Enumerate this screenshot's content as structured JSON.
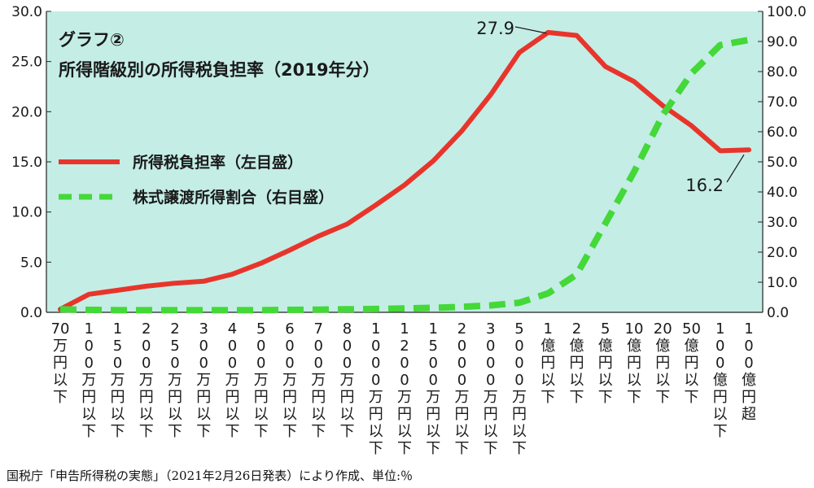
{
  "chart_data": {
    "type": "line",
    "title": "グラフ②",
    "subtitle": "所得階級別の所得税負担率（2019年分）",
    "categories": [
      "70万円以下",
      "100万円以下",
      "150万円以下",
      "200万円以下",
      "250万円以下",
      "300万円以下",
      "400万円以下",
      "500万円以下",
      "600万円以下",
      "700万円以下",
      "800万円以下",
      "1000万円以下",
      "1200万円以下",
      "1500万円以下",
      "2000万円以下",
      "3000万円以下",
      "5000万円以下",
      "1億円以下",
      "2億円以下",
      "5億円以下",
      "10億円以下",
      "20億円以下",
      "50億円以下",
      "100億円以下",
      "100億円超"
    ],
    "x_tick_labels": [
      [
        "70",
        "万",
        "円",
        "以",
        "下"
      ],
      [
        "1",
        "0",
        "0",
        "万",
        "円",
        "以",
        "下"
      ],
      [
        "1",
        "5",
        "0",
        "万",
        "円",
        "以",
        "下"
      ],
      [
        "2",
        "0",
        "0",
        "万",
        "円",
        "以",
        "下"
      ],
      [
        "2",
        "5",
        "0",
        "万",
        "円",
        "以",
        "下"
      ],
      [
        "3",
        "0",
        "0",
        "万",
        "円",
        "以",
        "下"
      ],
      [
        "4",
        "0",
        "0",
        "万",
        "円",
        "以",
        "下"
      ],
      [
        "5",
        "0",
        "0",
        "万",
        "円",
        "以",
        "下"
      ],
      [
        "6",
        "0",
        "0",
        "万",
        "円",
        "以",
        "下"
      ],
      [
        "7",
        "0",
        "0",
        "万",
        "円",
        "以",
        "下"
      ],
      [
        "8",
        "0",
        "0",
        "万",
        "円",
        "以",
        "下"
      ],
      [
        "1",
        "0",
        "0",
        "0",
        "万",
        "円",
        "以",
        "下"
      ],
      [
        "1",
        "2",
        "0",
        "0",
        "万",
        "円",
        "以",
        "下"
      ],
      [
        "1",
        "5",
        "0",
        "0",
        "万",
        "円",
        "以",
        "下"
      ],
      [
        "2",
        "0",
        "0",
        "0",
        "万",
        "円",
        "以",
        "下"
      ],
      [
        "3",
        "0",
        "0",
        "0",
        "万",
        "円",
        "以",
        "下"
      ],
      [
        "5",
        "0",
        "0",
        "0",
        "万",
        "円",
        "以",
        "下"
      ],
      [
        "1",
        "億",
        "円",
        "以",
        "下"
      ],
      [
        "2",
        "億",
        "円",
        "以",
        "下"
      ],
      [
        "5",
        "億",
        "円",
        "以",
        "下"
      ],
      [
        "10",
        "億",
        "円",
        "以",
        "下"
      ],
      [
        "20",
        "億",
        "円",
        "以",
        "下"
      ],
      [
        "50",
        "億",
        "円",
        "以",
        "下"
      ],
      [
        "1",
        "0",
        "0",
        "億",
        "円",
        "以",
        "下"
      ],
      [
        "1",
        "0",
        "0",
        "億",
        "円",
        "超"
      ]
    ],
    "y_left": {
      "ylim": [
        0,
        30
      ],
      "ticks": [
        "0.0",
        "5.0",
        "10.0",
        "15.0",
        "20.0",
        "25.0",
        "30.0"
      ]
    },
    "y_right": {
      "ylim": [
        0,
        100
      ],
      "ticks": [
        "0.0",
        "10.0",
        "20.0",
        "30.0",
        "40.0",
        "50.0",
        "60.0",
        "70.0",
        "80.0",
        "90.0",
        "100.0"
      ]
    },
    "series": [
      {
        "name": "所得税負担率（左目盛）",
        "axis": "left",
        "color": "#e8352b",
        "style": "solid",
        "values": [
          0.3,
          1.8,
          2.2,
          2.6,
          2.9,
          3.1,
          3.8,
          4.9,
          6.2,
          7.6,
          8.8,
          10.7,
          12.7,
          15.1,
          18.1,
          21.7,
          25.9,
          27.9,
          27.6,
          24.5,
          23.0,
          20.6,
          18.6,
          16.1,
          16.2
        ]
      },
      {
        "name": "株式譲渡所得割合（右目盛）",
        "axis": "right",
        "color": "#44d838",
        "style": "dashed",
        "values": [
          1.0,
          0.8,
          0.7,
          0.7,
          0.7,
          0.7,
          0.7,
          0.7,
          0.8,
          0.9,
          1.0,
          1.1,
          1.3,
          1.5,
          1.8,
          2.3,
          3.2,
          6.3,
          12.6,
          29.6,
          46.7,
          65.6,
          79.4,
          88.8,
          90.5
        ]
      }
    ],
    "annotations": [
      {
        "text": "27.9",
        "series": 0,
        "index": 17
      },
      {
        "text": "16.2",
        "series": 0,
        "index": 24
      }
    ],
    "legend_placement": "left",
    "grid": false,
    "plot_background": "#c4ede6"
  },
  "source_note": "国税庁「申告所得税の実態」（2021年2月26日発表）により作成、単位:％"
}
